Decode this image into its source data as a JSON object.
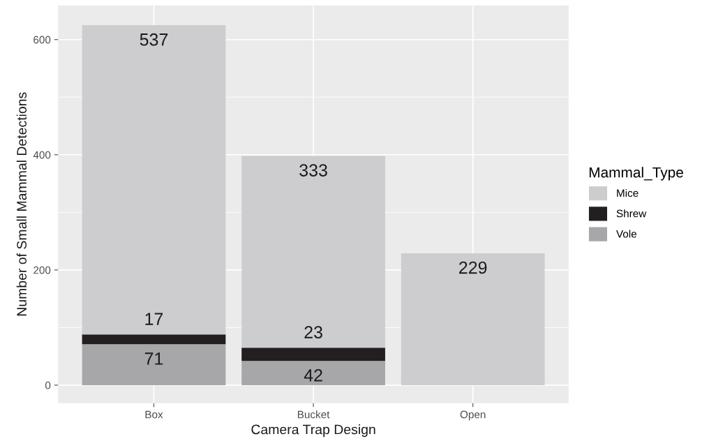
{
  "chart_data": {
    "type": "bar",
    "stacked": true,
    "xlabel": "Camera Trap Design",
    "ylabel": "Number of Small Mammal Detections",
    "legend_title": "Mammal_Type",
    "categories": [
      "Box",
      "Bucket",
      "Open"
    ],
    "series": [
      {
        "name": "Vole",
        "color": "#a7a7a9",
        "values": [
          71,
          42,
          null
        ],
        "value_labels": [
          "71",
          "42",
          null
        ]
      },
      {
        "name": "Shrew",
        "color": "#231f20",
        "values": [
          17,
          23,
          null
        ],
        "value_labels": [
          "17",
          "23",
          null
        ]
      },
      {
        "name": "Mice",
        "color": "#cdcdcf",
        "values": [
          537,
          333,
          229
        ],
        "value_labels": [
          "537",
          "333",
          "229"
        ]
      }
    ],
    "ylim": [
      -31.4,
      659.4
    ],
    "yticks": [
      0,
      200,
      400,
      600
    ],
    "grid": true,
    "legend": "right"
  }
}
